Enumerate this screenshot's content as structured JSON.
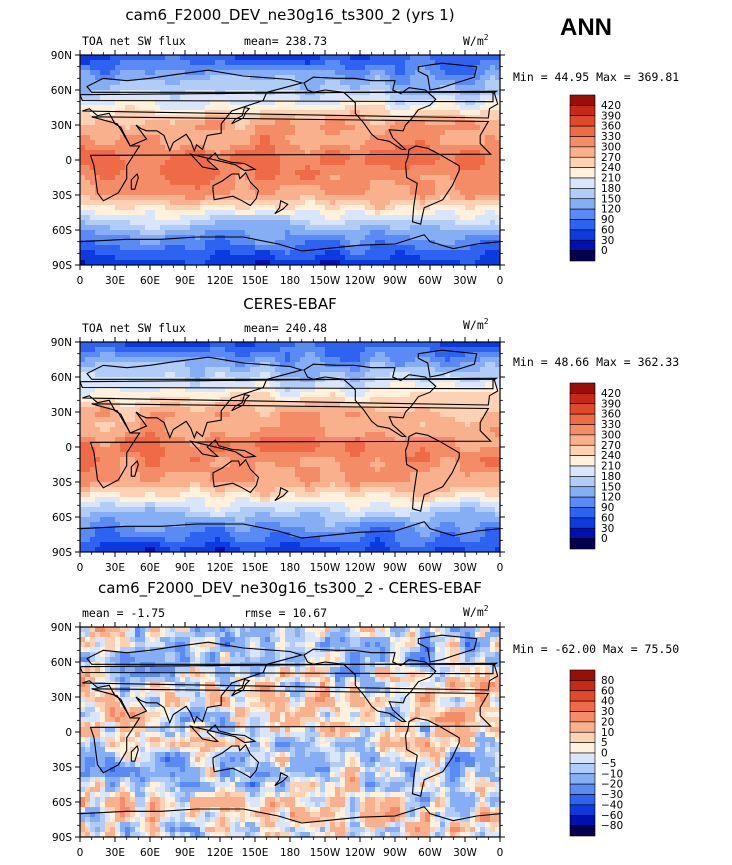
{
  "season_label": "ANN",
  "colors": {
    "abs_scale": [
      "#05004d",
      "#0010b0",
      "#0b3be0",
      "#2e63f2",
      "#5a8bf4",
      "#86aef5",
      "#b0ccf7",
      "#d8e5fa",
      "#fff1dc",
      "#fdd2b4",
      "#f9b08d",
      "#f48d67",
      "#ef6a46",
      "#df4a2a",
      "#c42a16",
      "#9a0e08"
    ],
    "diff_scale": [
      "#05004d",
      "#0010b0",
      "#0b3be0",
      "#2e63f2",
      "#5a8bf4",
      "#86aef5",
      "#b0ccf7",
      "#d8e5fa",
      "#fff1dc",
      "#fdd2b4",
      "#f9b08d",
      "#f48d67",
      "#ef6a46",
      "#df4a2a",
      "#c42a16",
      "#9a0e08"
    ]
  },
  "axes": {
    "lat_labels": [
      "90N",
      "60N",
      "30N",
      "0",
      "30S",
      "60S",
      "90S"
    ],
    "lon_labels": [
      "0",
      "30E",
      "60E",
      "90E",
      "120E",
      "150E",
      "180",
      "150W",
      "120W",
      "90W",
      "60W",
      "30W",
      "0"
    ]
  },
  "panels": [
    {
      "title": "cam6_F2000_DEV_ne30g16_ts300_2 (yrs 1)",
      "left_label": "TOA net SW flux",
      "stat_label": "mean=  238.73",
      "units": "W/m",
      "units_exp": "2",
      "minmax": "Min =   44.95  Max =  369.81",
      "colorbar_labels": [
        "420",
        "390",
        "360",
        "330",
        "300",
        "270",
        "240",
        "210",
        "180",
        "150",
        "120",
        "90",
        "60",
        "30",
        "0"
      ]
    },
    {
      "title": "CERES-EBAF",
      "left_label": "TOA net SW flux",
      "stat_label": "mean=  240.48",
      "units": "W/m",
      "units_exp": "2",
      "minmax": "Min =   48.66  Max =  362.33",
      "colorbar_labels": [
        "420",
        "390",
        "360",
        "330",
        "300",
        "270",
        "240",
        "210",
        "180",
        "150",
        "120",
        "90",
        "60",
        "30",
        "0"
      ]
    },
    {
      "title": "cam6_F2000_DEV_ne30g16_ts300_2 - CERES-EBAF",
      "left_label": "mean =   -1.75",
      "stat_label": "rmse =   10.67",
      "units": "W/m",
      "units_exp": "2",
      "minmax": "Min =  -62.00  Max =   75.50",
      "colorbar_labels": [
        "80",
        "60",
        "40",
        "30",
        "20",
        "10",
        "5",
        "0",
        "−5",
        "−10",
        "−20",
        "−30",
        "−40",
        "−60",
        "−80"
      ]
    }
  ],
  "chart_data": [
    {
      "type": "heatmap",
      "title": "cam6_F2000_DEV_ne30g16_ts300_2 (yrs 1)",
      "variable": "TOA net SW flux",
      "units": "W/m2",
      "mean": 238.73,
      "min": 44.95,
      "max": 369.81,
      "levels": [
        0,
        30,
        60,
        90,
        120,
        150,
        180,
        210,
        240,
        270,
        300,
        330,
        360,
        390,
        420
      ],
      "zonal_profile": {
        "lat": [
          90,
          60,
          30,
          0,
          -30,
          -60,
          -90
        ],
        "value": [
          60,
          160,
          290,
          330,
          300,
          140,
          40
        ]
      }
    },
    {
      "type": "heatmap",
      "title": "CERES-EBAF",
      "variable": "TOA net SW flux",
      "units": "W/m2",
      "mean": 240.48,
      "min": 48.66,
      "max": 362.33,
      "levels": [
        0,
        30,
        60,
        90,
        120,
        150,
        180,
        210,
        240,
        270,
        300,
        330,
        360,
        390,
        420
      ],
      "zonal_profile": {
        "lat": [
          90,
          60,
          30,
          0,
          -30,
          -60,
          -90
        ],
        "value": [
          60,
          170,
          280,
          320,
          300,
          150,
          45
        ]
      }
    },
    {
      "type": "heatmap",
      "title": "cam6_F2000_DEV_ne30g16_ts300_2 - CERES-EBAF",
      "variable": "TOA net SW flux difference",
      "units": "W/m2",
      "mean": -1.75,
      "rmse": 10.67,
      "min": -62.0,
      "max": 75.5,
      "levels": [
        -80,
        -60,
        -40,
        -30,
        -20,
        -10,
        -5,
        0,
        5,
        10,
        20,
        30,
        40,
        60,
        80
      ],
      "zonal_profile": {
        "lat": [
          90,
          60,
          30,
          0,
          -30,
          -60,
          -90
        ],
        "value": [
          -5,
          -8,
          5,
          0,
          -10,
          5,
          -2
        ]
      }
    }
  ]
}
